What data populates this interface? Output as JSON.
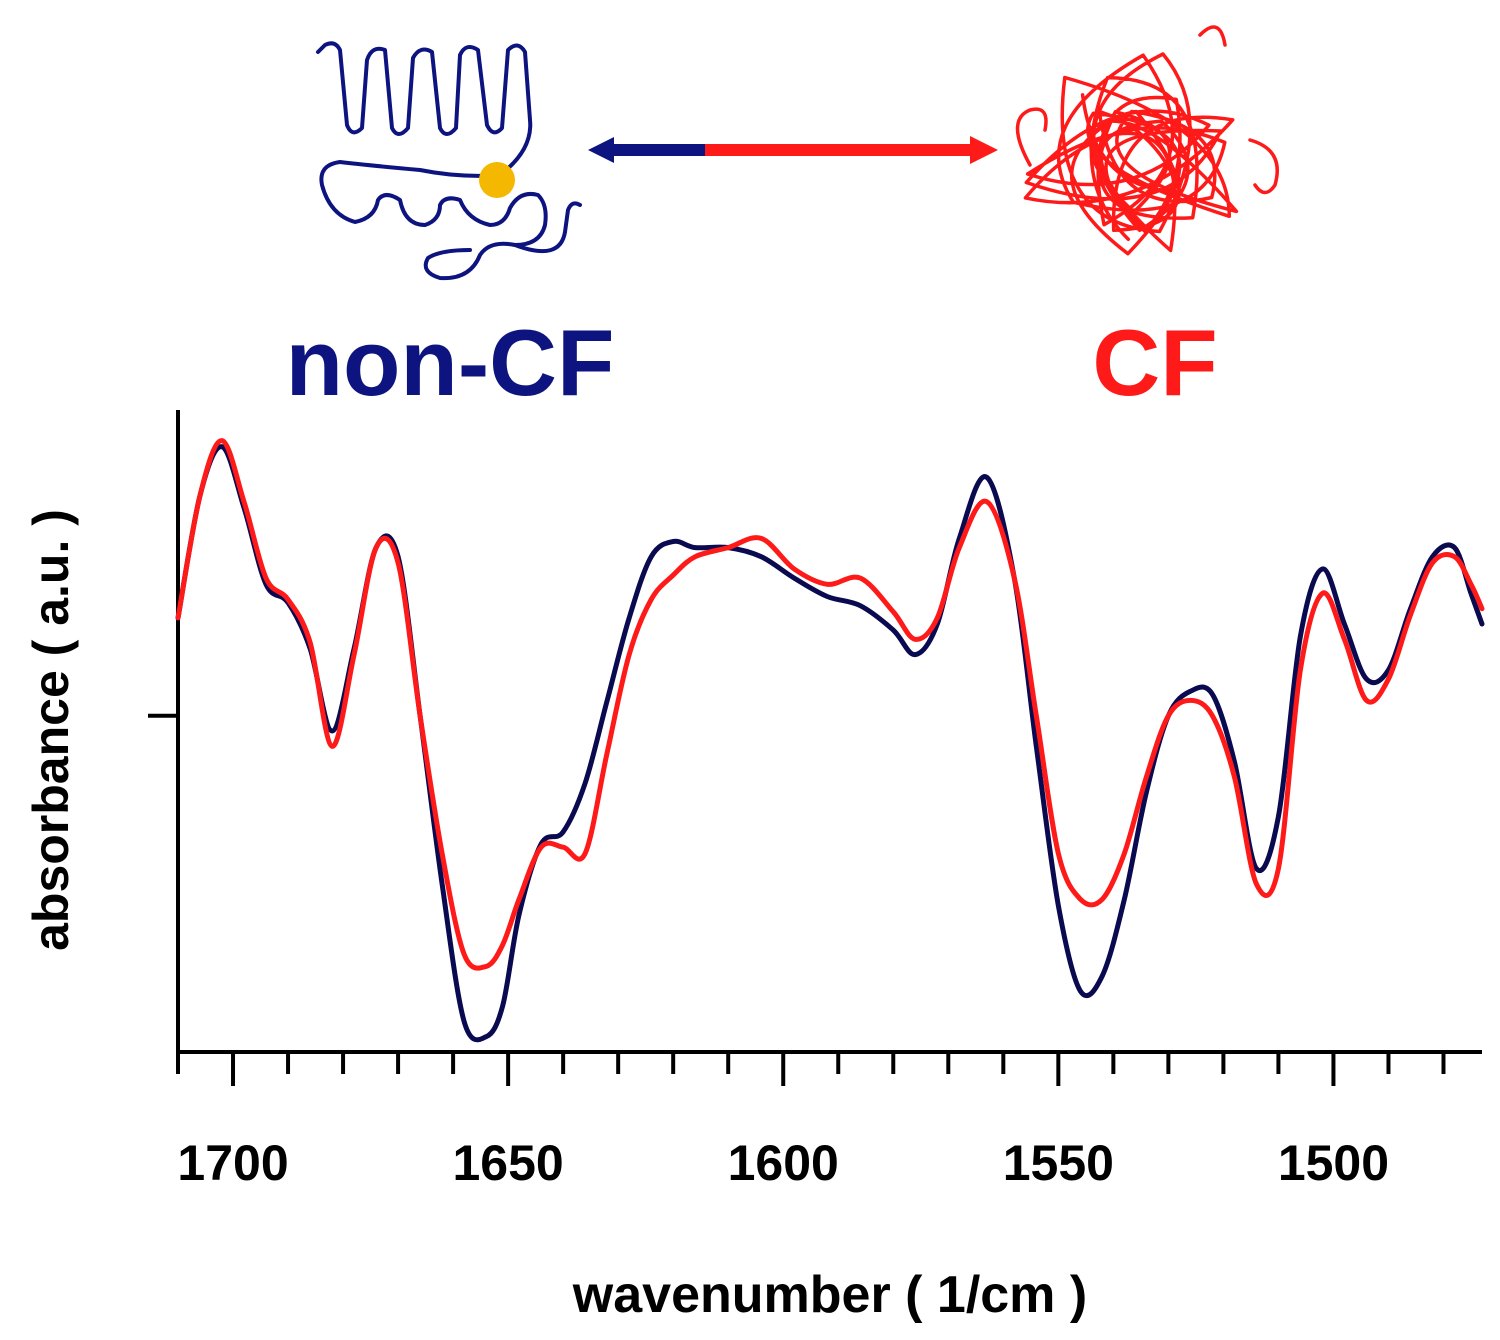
{
  "header": {
    "left_label": "non-CF",
    "right_label": "CF",
    "left_color": "#0d1480",
    "right_color": "#ff1a1a",
    "marker_color": "#f5b800",
    "left_icon": "folded-protein-chain-icon",
    "right_icon": "tangled-protein-chain-icon",
    "arrow_icon": "double-headed-arrow-icon"
  },
  "chart_data": {
    "type": "line",
    "xlabel": "wavenumber ( 1/cm )",
    "ylabel": "absorbance ( a.u. )",
    "xlim": [
      1710,
      1473
    ],
    "x_reversed": true,
    "ylim": [
      -1.1,
      1.0
    ],
    "x_ticks": [
      1700,
      1650,
      1600,
      1550,
      1500
    ],
    "x_tick_labels": [
      "1700",
      "1650",
      "1600",
      "1550",
      "1500"
    ],
    "y_ticks": [
      0
    ],
    "y_tick_labels": [
      ""
    ],
    "legend": "none",
    "grid": false,
    "series": [
      {
        "color": "#0a0a50",
        "x": [
          1710,
          1706,
          1702,
          1698,
          1694,
          1690,
          1686,
          1682,
          1678,
          1674,
          1670,
          1666,
          1662,
          1658,
          1654,
          1651,
          1648,
          1644,
          1640,
          1636,
          1632,
          1628,
          1624,
          1620,
          1616,
          1610,
          1604,
          1598,
          1592,
          1586,
          1580,
          1576,
          1572,
          1568,
          1563,
          1558,
          1554,
          1550,
          1546,
          1542,
          1538,
          1534,
          1530,
          1526,
          1522,
          1518,
          1514,
          1510,
          1506,
          1502,
          1498,
          1494,
          1490,
          1486,
          1482,
          1478,
          1475,
          1473
        ],
        "y": [
          0.32,
          0.72,
          0.88,
          0.68,
          0.43,
          0.37,
          0.22,
          -0.05,
          0.22,
          0.55,
          0.52,
          0.0,
          -0.55,
          -1.0,
          -1.05,
          -0.95,
          -0.65,
          -0.42,
          -0.38,
          -0.22,
          0.05,
          0.32,
          0.52,
          0.57,
          0.55,
          0.55,
          0.52,
          0.45,
          0.39,
          0.36,
          0.28,
          0.2,
          0.3,
          0.58,
          0.78,
          0.45,
          -0.1,
          -0.62,
          -0.9,
          -0.85,
          -0.6,
          -0.25,
          0.0,
          0.08,
          0.07,
          -0.15,
          -0.5,
          -0.33,
          0.26,
          0.48,
          0.3,
          0.12,
          0.15,
          0.35,
          0.52,
          0.55,
          0.4,
          0.3
        ]
      },
      {
        "color": "#ff1a1a",
        "x": [
          1710,
          1706,
          1702,
          1698,
          1694,
          1690,
          1686,
          1682,
          1678,
          1674,
          1670,
          1666,
          1662,
          1658,
          1654,
          1651,
          1648,
          1644,
          1640,
          1636,
          1632,
          1628,
          1624,
          1620,
          1616,
          1610,
          1604,
          1598,
          1592,
          1586,
          1580,
          1576,
          1572,
          1568,
          1563,
          1558,
          1554,
          1550,
          1546,
          1542,
          1538,
          1534,
          1530,
          1526,
          1522,
          1518,
          1514,
          1510,
          1506,
          1502,
          1498,
          1494,
          1490,
          1486,
          1482,
          1478,
          1475,
          1473
        ],
        "y": [
          0.32,
          0.72,
          0.9,
          0.7,
          0.45,
          0.38,
          0.24,
          -0.1,
          0.2,
          0.55,
          0.5,
          0.0,
          -0.45,
          -0.78,
          -0.82,
          -0.75,
          -0.6,
          -0.43,
          -0.43,
          -0.45,
          -0.12,
          0.2,
          0.38,
          0.46,
          0.52,
          0.55,
          0.58,
          0.48,
          0.43,
          0.45,
          0.34,
          0.25,
          0.32,
          0.55,
          0.7,
          0.45,
          0.0,
          -0.45,
          -0.6,
          -0.6,
          -0.45,
          -0.2,
          0.0,
          0.05,
          0.0,
          -0.2,
          -0.55,
          -0.5,
          0.15,
          0.4,
          0.25,
          0.05,
          0.12,
          0.33,
          0.5,
          0.52,
          0.43,
          0.35
        ]
      }
    ]
  }
}
